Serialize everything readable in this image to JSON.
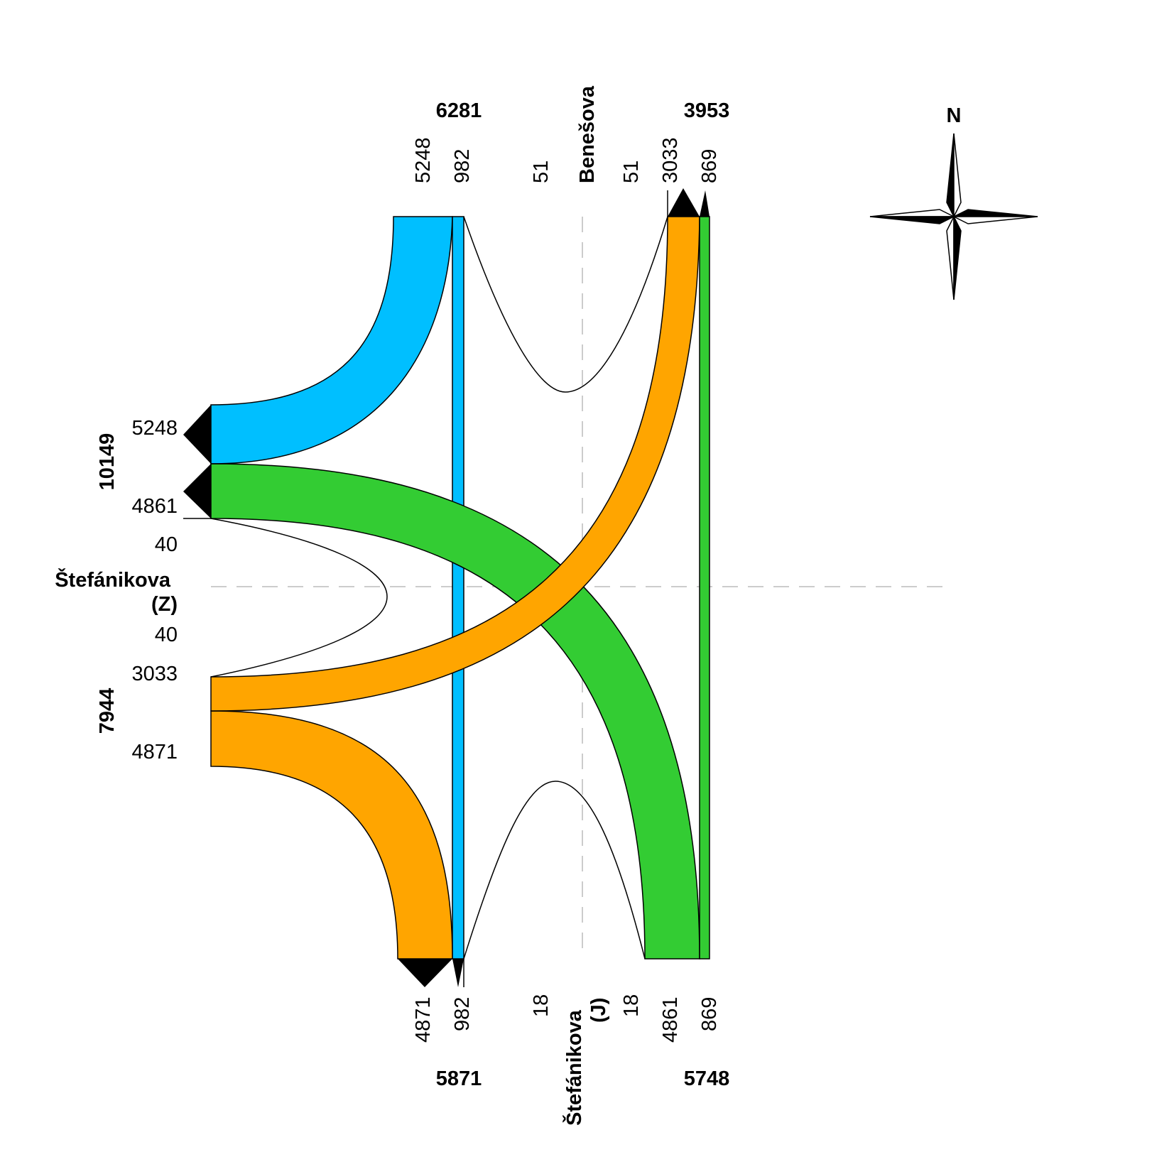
{
  "diagram": {
    "type": "traffic-flow-diagram",
    "colors": {
      "blue": "#00BFFF",
      "green": "#33CC33",
      "orange": "#FFA500",
      "outline": "#000000",
      "axis": "#BBBBBB"
    },
    "streets": {
      "north": "Benešova",
      "west_line1": "Štefánikova",
      "west_line2": "(Z)",
      "south_line1": "Štefánikova",
      "south_line2": "(J)"
    },
    "north_arm": {
      "total_in": "6281",
      "total_out": "3953",
      "in_blue": "5248",
      "in_through": "982",
      "in_uturn": "51",
      "out_uturn": "51",
      "out_orange": "3033",
      "out_green": "869"
    },
    "west_arm": {
      "total_out": "10149",
      "total_in": "7944",
      "out_blue": "5248",
      "out_green": "4861",
      "out_uturn": "40",
      "in_uturn": "40",
      "in_orange_north": "3033",
      "in_orange_south": "4871"
    },
    "south_arm": {
      "total_out": "5871",
      "total_in": "5748",
      "out_orange": "4871",
      "out_through": "982",
      "out_uturn": "18",
      "in_uturn": "18",
      "in_green": "4861",
      "in_through": "869"
    },
    "compass": {
      "label": "N",
      "icon": "compass-rose-icon"
    }
  }
}
